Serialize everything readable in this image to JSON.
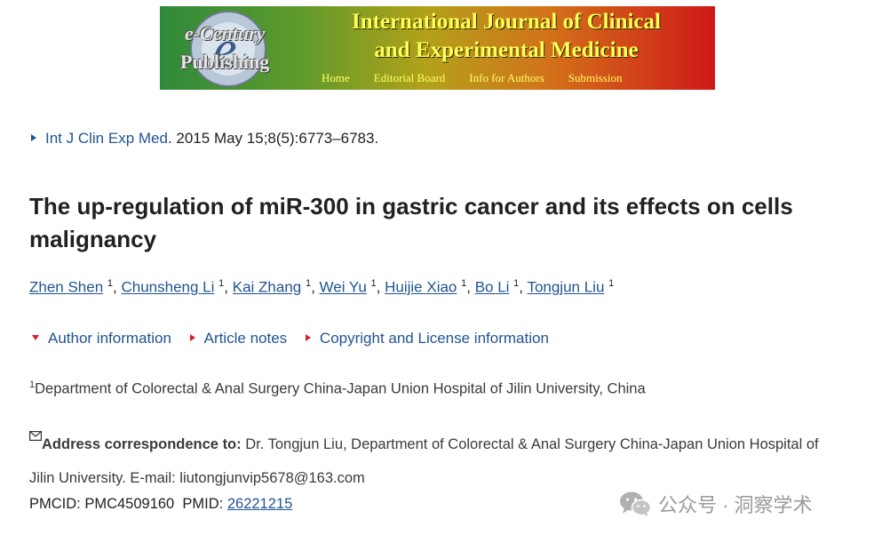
{
  "banner": {
    "logo_line1": "e-Century",
    "logo_line2": "Publishing",
    "title_line1": "International Journal of Clinical",
    "title_line2": "and Experimental Medicine",
    "nav": [
      "Home",
      "Editorial Board",
      "Info for Authors",
      "Submission"
    ]
  },
  "citation": {
    "journal_link": "Int J Clin Exp Med",
    "rest": ". 2015 May 15;8(5):6773–6783."
  },
  "article": {
    "title": "The up-regulation of miR-300 in gastric cancer and its effects on cells malignancy"
  },
  "authors": [
    {
      "name": "Zhen Shen",
      "sup": "1"
    },
    {
      "name": "Chunsheng Li",
      "sup": "1"
    },
    {
      "name": "Kai Zhang",
      "sup": "1"
    },
    {
      "name": "Wei Yu",
      "sup": "1"
    },
    {
      "name": "Huijie Xiao",
      "sup": "1"
    },
    {
      "name": "Bo Li",
      "sup": "1"
    },
    {
      "name": "Tongjun Liu",
      "sup": "1"
    }
  ],
  "toggles": {
    "author_info": "Author information",
    "article_notes": "Article notes",
    "copyright": "Copyright and License information"
  },
  "affiliation": {
    "sup": "1",
    "text": "Department of Colorectal & Anal Surgery China-Japan Union Hospital of Jilin University, China"
  },
  "correspondence": {
    "label": "Address correspondence to:",
    "text": " Dr. Tongjun Liu, Department of Colorectal & Anal Surgery China-Japan Union Hospital of Jilin University. E-mail: liutongjunvip5678@163.com"
  },
  "ids": {
    "pmcid": "PMCID: PMC4509160",
    "pmid_label": "PMID: ",
    "pmid": "26221215"
  },
  "watermark": {
    "text": "公众号 · 洞察学术"
  },
  "colors": {
    "link": "#205493",
    "toggle_marker": "#d6202f",
    "banner_title": "#ffff55"
  }
}
